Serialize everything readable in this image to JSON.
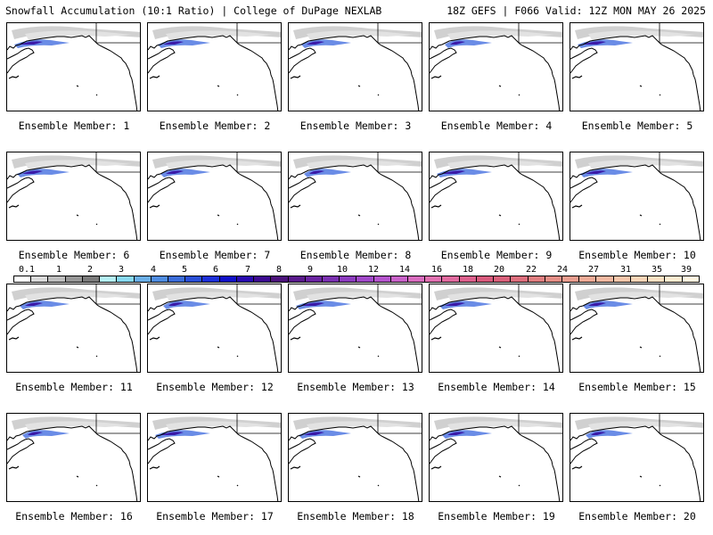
{
  "header": {
    "title_left": "Snowfall Accumulation (10:1 Ratio) | College of DuPage NEXLAB",
    "title_right": "18Z GEFS | F066 Valid: 12Z MON MAY 26 2025"
  },
  "panels": [
    {
      "label": "Ensemble Member: 1"
    },
    {
      "label": "Ensemble Member: 2"
    },
    {
      "label": "Ensemble Member: 3"
    },
    {
      "label": "Ensemble Member: 4"
    },
    {
      "label": "Ensemble Member: 5"
    },
    {
      "label": "Ensemble Member: 6"
    },
    {
      "label": "Ensemble Member: 7"
    },
    {
      "label": "Ensemble Member: 8"
    },
    {
      "label": "Ensemble Member: 9"
    },
    {
      "label": "Ensemble Member: 10"
    },
    {
      "label": "Ensemble Member: 11"
    },
    {
      "label": "Ensemble Member: 12"
    },
    {
      "label": "Ensemble Member: 13"
    },
    {
      "label": "Ensemble Member: 14"
    },
    {
      "label": "Ensemble Member: 15"
    },
    {
      "label": "Ensemble Member: 16"
    },
    {
      "label": "Ensemble Member: 17"
    },
    {
      "label": "Ensemble Member: 18"
    },
    {
      "label": "Ensemble Member: 19"
    },
    {
      "label": "Ensemble Member: 20"
    }
  ],
  "colorbar": {
    "labels": [
      "0.1",
      "1",
      "2",
      "3",
      "4",
      "5",
      "6",
      "7",
      "8",
      "9",
      "10",
      "12",
      "14",
      "16",
      "18",
      "20",
      "22",
      "24",
      "27",
      "31",
      "35",
      "39"
    ],
    "colors": [
      "#ffffff",
      "#d9d9d9",
      "#bdbdbd",
      "#969696",
      "#7a7a7a",
      "#b4f0f5",
      "#87d8f0",
      "#6aaee6",
      "#4f8ce0",
      "#3b6cd8",
      "#2a4fd6",
      "#1d30d8",
      "#1010c8",
      "#2a0ab0",
      "#3d0a90",
      "#4c127a",
      "#5a1a8c",
      "#6a24a0",
      "#7a30b0",
      "#8c3cbe",
      "#a048c8",
      "#b454cc",
      "#c862c8",
      "#d86cbe",
      "#e070b0",
      "#e06a9e",
      "#dc608c",
      "#d85a7c",
      "#d8607a",
      "#dc6e7c",
      "#e07e80",
      "#e48e86",
      "#e89c8e",
      "#eeaa96",
      "#f2b8a0",
      "#f6c6aa",
      "#f8d4b6",
      "#fae0c2",
      "#fcecd0",
      "#fff6e0"
    ]
  }
}
